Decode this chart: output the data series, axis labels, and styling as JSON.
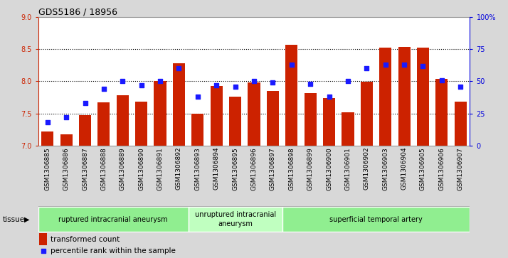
{
  "title": "GDS5186 / 18956",
  "samples": [
    "GSM1306885",
    "GSM1306886",
    "GSM1306887",
    "GSM1306888",
    "GSM1306889",
    "GSM1306890",
    "GSM1306891",
    "GSM1306892",
    "GSM1306893",
    "GSM1306894",
    "GSM1306895",
    "GSM1306896",
    "GSM1306897",
    "GSM1306898",
    "GSM1306899",
    "GSM1306900",
    "GSM1306901",
    "GSM1306902",
    "GSM1306903",
    "GSM1306904",
    "GSM1306905",
    "GSM1306906",
    "GSM1306907"
  ],
  "bar_values": [
    7.22,
    7.18,
    7.47,
    7.67,
    7.78,
    7.68,
    8.0,
    8.28,
    7.5,
    7.93,
    7.76,
    7.98,
    7.85,
    8.57,
    7.82,
    7.74,
    7.52,
    7.99,
    8.52,
    8.53,
    8.52,
    8.04,
    7.68
  ],
  "percentile_values": [
    18,
    22,
    33,
    44,
    50,
    47,
    50,
    60,
    38,
    47,
    46,
    50,
    49,
    63,
    48,
    38,
    50,
    60,
    63,
    63,
    62,
    51,
    46
  ],
  "ylim_left": [
    7,
    9
  ],
  "ylim_right": [
    0,
    100
  ],
  "yticks_left": [
    7,
    7.5,
    8,
    8.5,
    9
  ],
  "yticks_right": [
    0,
    25,
    50,
    75,
    100
  ],
  "bar_color": "#cc2200",
  "dot_color": "#1a1aff",
  "bg_color": "#d8d8d8",
  "plot_bg": "#ffffff",
  "tissue_groups": [
    {
      "label": "ruptured intracranial aneurysm",
      "start": 0,
      "end": 7,
      "color": "#90ee90"
    },
    {
      "label": "unruptured intracranial\naneurysm",
      "start": 8,
      "end": 12,
      "color": "#c0ffc0"
    },
    {
      "label": "superficial temporal artery",
      "start": 13,
      "end": 22,
      "color": "#90ee90"
    }
  ],
  "legend_bar_label": "transformed count",
  "legend_dot_label": "percentile rank within the sample",
  "ylabel_left_color": "#cc2200",
  "ylabel_right_color": "#0000dd",
  "grid_color": "black",
  "grid_linestyle": "dotted",
  "grid_linewidth": 0.8,
  "yticks_grid": [
    7.5,
    8.0,
    8.5
  ],
  "bar_width": 0.65,
  "tick_fontsize": 7,
  "title_fontsize": 9
}
